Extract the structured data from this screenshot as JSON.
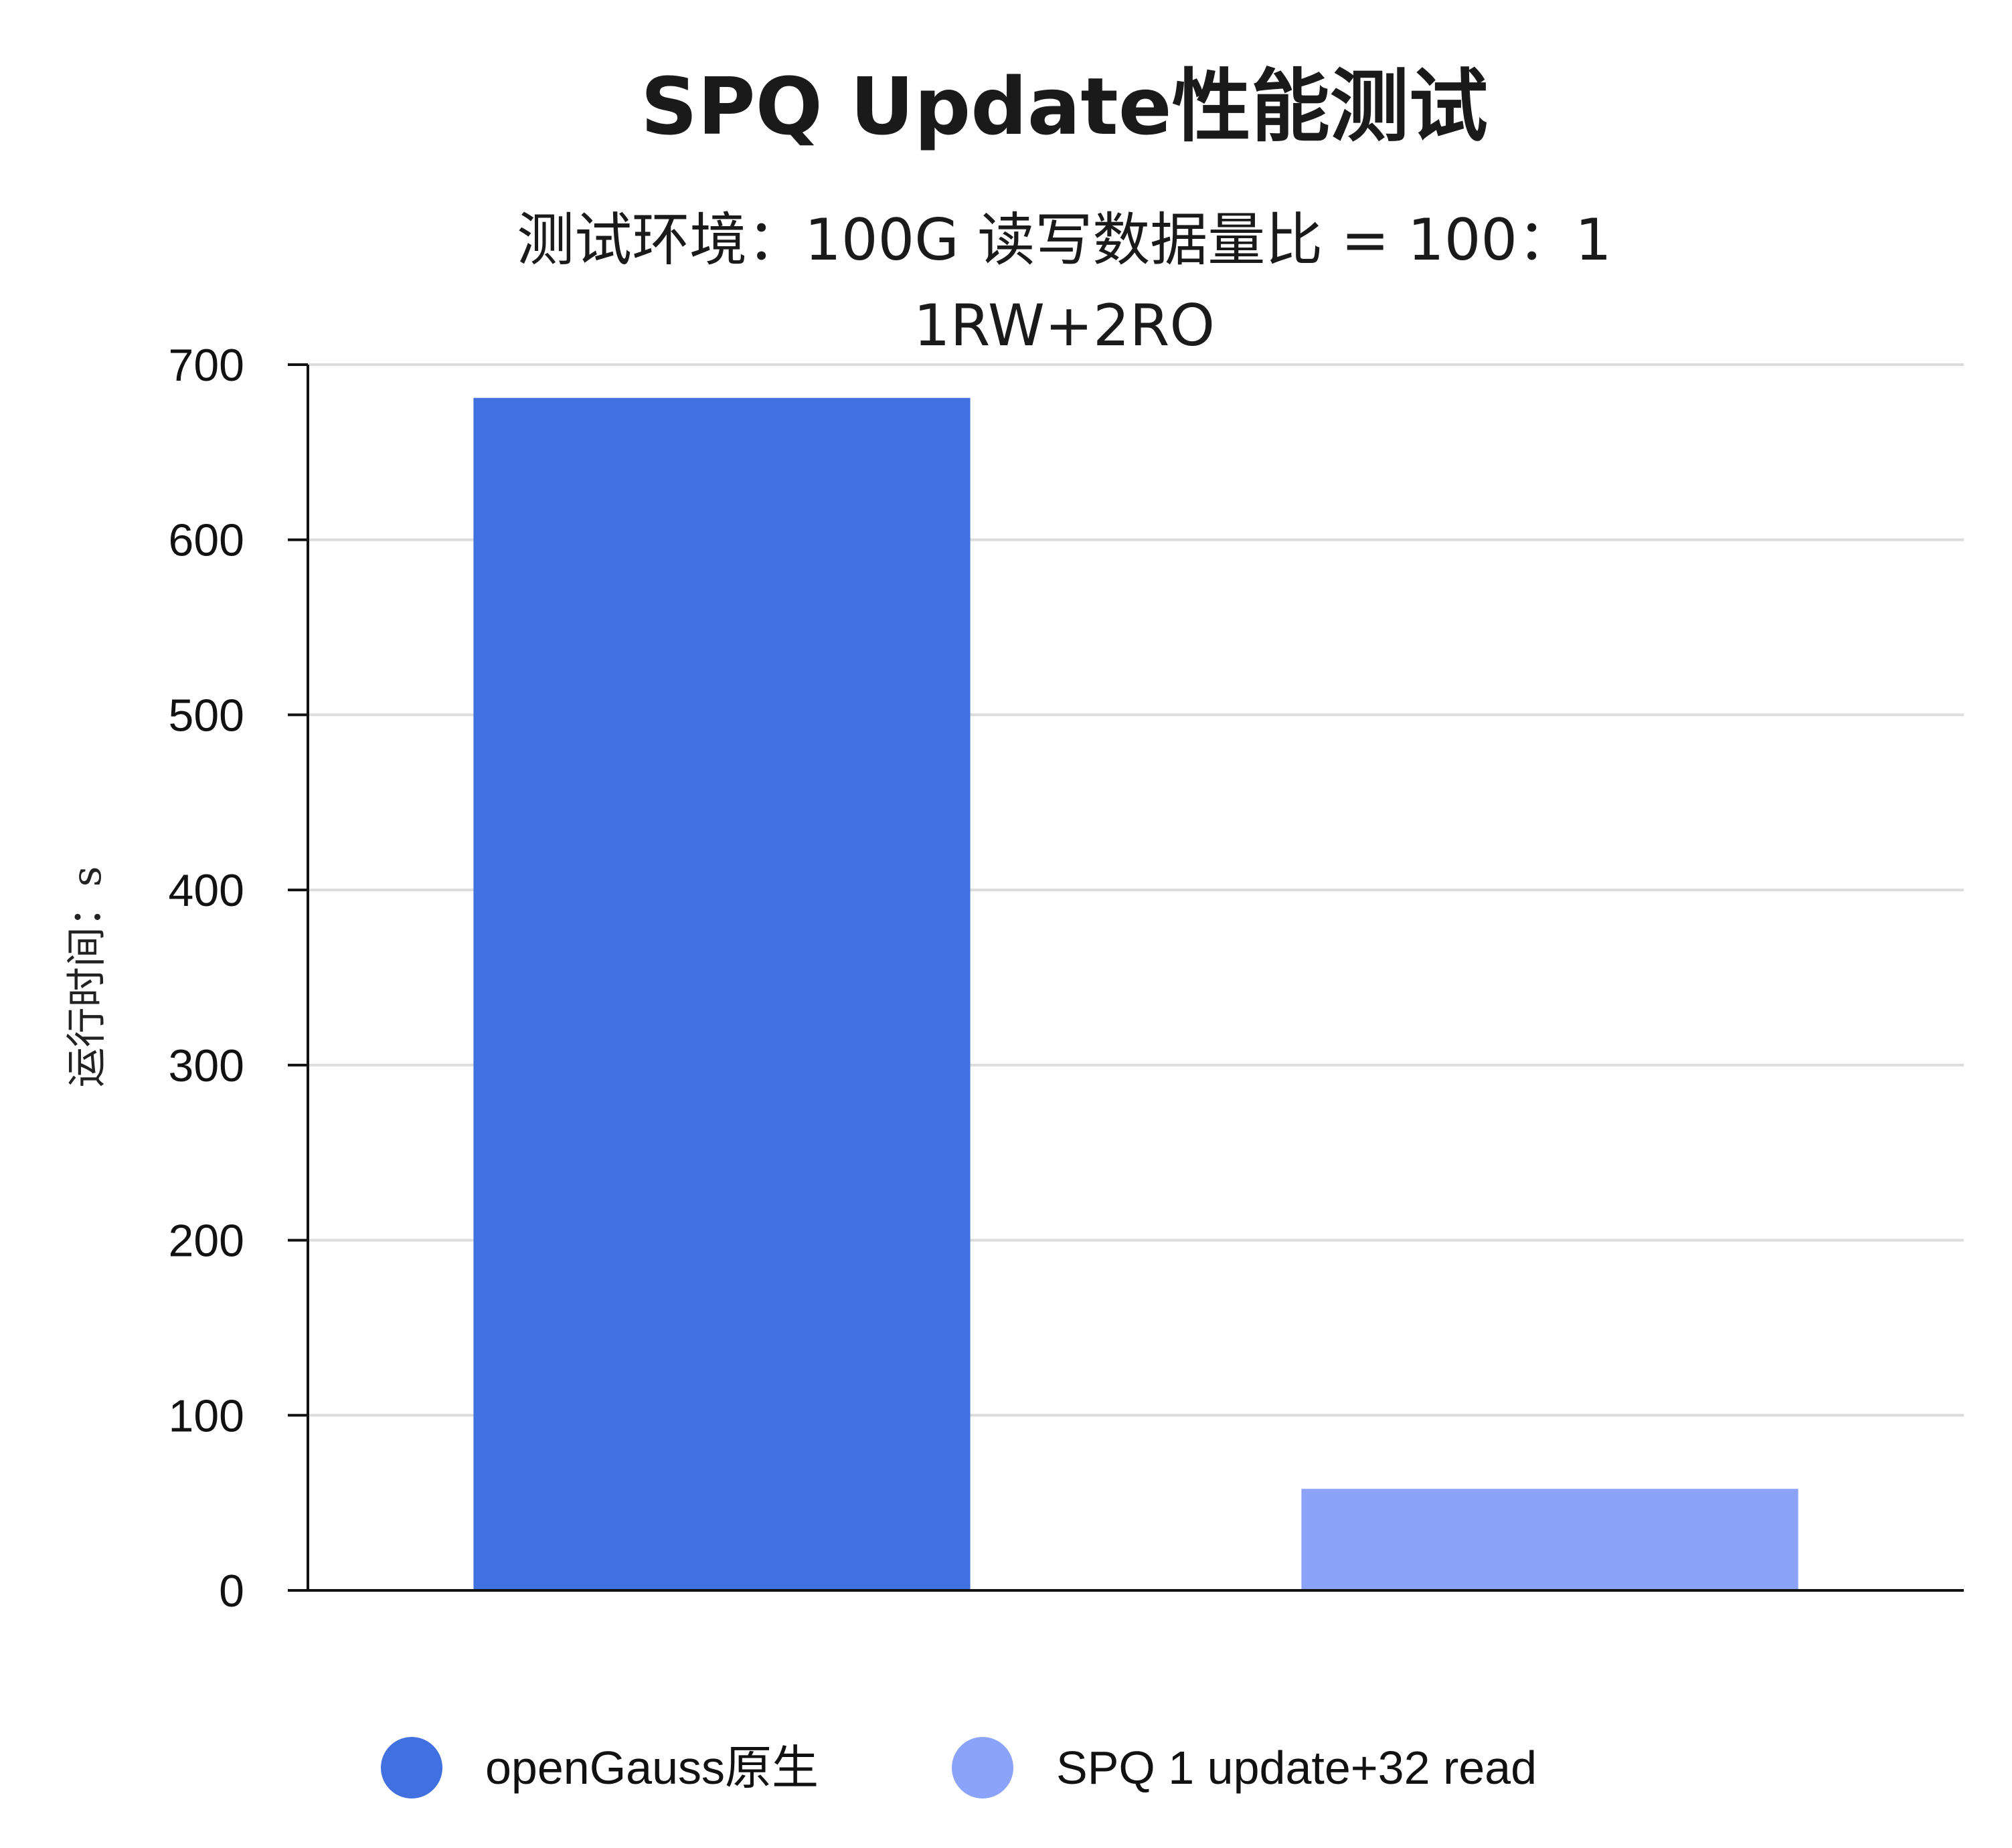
{
  "chart_data": {
    "type": "bar",
    "title": "SPQ Update性能测试",
    "subtitle_lines": [
      "测试环境：100G 读写数据量比 = 100：1",
      "1RW+2RO"
    ],
    "xlabel": "",
    "ylabel": "运行时间：s",
    "ylim": [
      0,
      700
    ],
    "yticks": [
      0,
      100,
      200,
      300,
      400,
      500,
      600,
      700
    ],
    "categories": [
      "openGauss原生",
      "SPQ 1 update+32 read"
    ],
    "values": [
      681,
      58
    ],
    "colors": [
      "#4170e0",
      "#8ca3fb"
    ],
    "grid": true,
    "legend_position": "bottom"
  }
}
